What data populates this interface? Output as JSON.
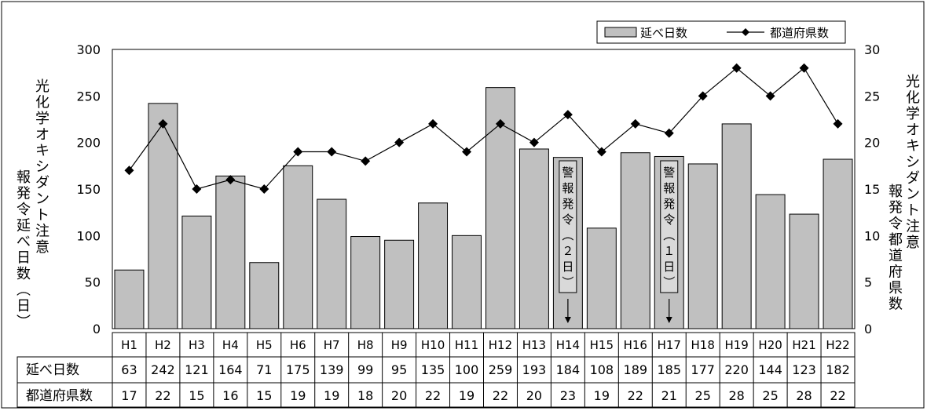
{
  "chart_data": {
    "type": "bar+line",
    "categories": [
      "H1",
      "H2",
      "H3",
      "H4",
      "H5",
      "H6",
      "H7",
      "H8",
      "H9",
      "H10",
      "H11",
      "H12",
      "H13",
      "H14",
      "H15",
      "H16",
      "H17",
      "H18",
      "H19",
      "H20",
      "H21",
      "H22"
    ],
    "series": [
      {
        "name": "延べ日数",
        "kind": "bar",
        "axis": "left",
        "values": [
          63,
          242,
          121,
          164,
          71,
          175,
          139,
          99,
          95,
          135,
          100,
          259,
          193,
          184,
          108,
          189,
          185,
          177,
          220,
          144,
          123,
          182
        ]
      },
      {
        "name": "都道府県数",
        "kind": "line",
        "axis": "right",
        "values": [
          17,
          22,
          15,
          16,
          15,
          19,
          19,
          18,
          20,
          22,
          19,
          22,
          20,
          23,
          19,
          22,
          21,
          25,
          28,
          25,
          28,
          22
        ]
      }
    ],
    "ylabel_left": "光化学オキシダント注意報発令延べ日数（日）",
    "ylabel_right": "光化学オキシダント注意報発令都道府県数",
    "ylim_left": [
      0,
      300
    ],
    "yticks_left": [
      0,
      50,
      100,
      150,
      200,
      250,
      300
    ],
    "ylim_right": [
      0,
      30
    ],
    "yticks_right": [
      0,
      5,
      10,
      15,
      20,
      25,
      30
    ],
    "legend": [
      "延べ日数",
      "都道府県数"
    ],
    "legend_position": "top-right",
    "annotations": [
      {
        "category": "H14",
        "text": "警報発令（２日）"
      },
      {
        "category": "H17",
        "text": "警報発令（１日）"
      }
    ],
    "table": {
      "row_labels": [
        "延べ日数",
        "都道府県数"
      ]
    },
    "grid": false,
    "colors": {
      "bar_fill": "#c0c0c0",
      "bar_stroke": "#000000",
      "line": "#000000",
      "annotation_fill": "#d9d9d9"
    }
  }
}
